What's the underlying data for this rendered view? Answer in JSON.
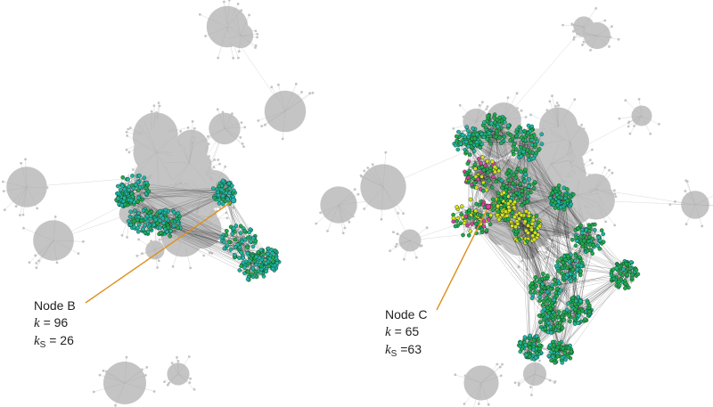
{
  "colors": {
    "background_net": "#c4c4c4",
    "background_edge": "#a9a9a9",
    "cyan_node": "#1fb5a6",
    "green_node": "#1faa4e",
    "yellow_node": "#d8e01e",
    "magenta_node": "#d8429a",
    "dark_edge": "#222222",
    "leader_line": "#e0901e"
  },
  "panels": [
    {
      "id": "left",
      "annotation": {
        "name": "Node B",
        "k_symbol": "k",
        "k_value": "= 96",
        "ks_symbol": "k",
        "ks_sub": "S",
        "ks_value": "= 26"
      }
    },
    {
      "id": "right",
      "annotation": {
        "name": "Node C",
        "k_symbol": "k",
        "k_value": "= 65",
        "ks_symbol": "k",
        "ks_sub": "S",
        "ks_value": "=63"
      }
    }
  ]
}
